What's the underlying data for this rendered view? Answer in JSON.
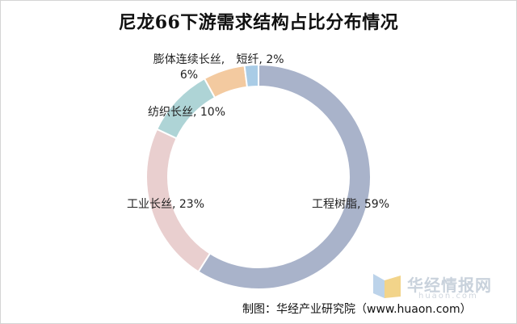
{
  "chart_data": {
    "type": "pie",
    "style": "donut",
    "title": "尼龙66下游需求结构占比分布情况",
    "categories": [
      "工程树脂",
      "工业长丝",
      "纺织长丝",
      "膨体连续长丝",
      "短纤"
    ],
    "values": [
      59,
      23,
      10,
      6,
      2
    ],
    "unit": "%",
    "colors": [
      "#a9b3ca",
      "#e9cfcf",
      "#aed4d6",
      "#f3caa0",
      "#a9cce6"
    ],
    "labels": {
      "engineering_resin": "工程树脂, 59%",
      "industrial_filament": "工业长丝, 23%",
      "textile_filament": "纺织长丝, 10%",
      "bcf_line1": "膨体连续长丝,",
      "bcf_line2": "6%",
      "staple": "短纤, 2%"
    }
  },
  "watermark": {
    "name": "华经情报网",
    "url": "huaon.com",
    "logo_colors": [
      "#bcd3ea",
      "#f2d48a"
    ]
  },
  "source": "制图：华经产业研究院（www.huaon.com）"
}
